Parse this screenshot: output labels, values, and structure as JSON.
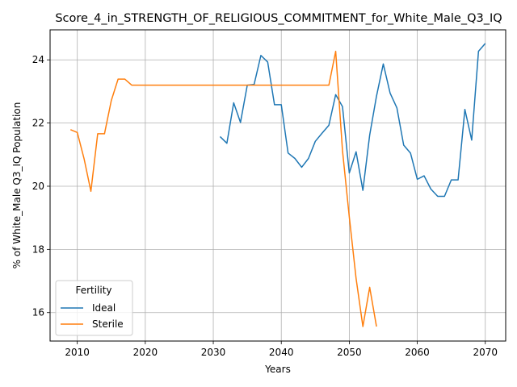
{
  "chart_data": {
    "type": "line",
    "title": "Score_4_in_STRENGTH_OF_RELIGIOUS_COMMITMENT_for_White_Male_Q3_IQ",
    "xlabel": "Years",
    "ylabel": "% of White_Male Q3_IQ Population",
    "xlim": [
      2006,
      2073
    ],
    "ylim": [
      15.1,
      24.95
    ],
    "x_ticks": [
      2010,
      2020,
      2030,
      2040,
      2050,
      2060,
      2070
    ],
    "y_ticks": [
      16,
      18,
      20,
      22,
      24
    ],
    "grid": true,
    "legend": {
      "title": "Fertility",
      "placement": "lower-left"
    },
    "series": [
      {
        "name": "Ideal",
        "color": "#1f77b4",
        "x": [
          2031,
          2032,
          2033,
          2034,
          2035,
          2036,
          2037,
          2038,
          2039,
          2040,
          2041,
          2042,
          2043,
          2044,
          2045,
          2046,
          2047,
          2048,
          2049,
          2050,
          2051,
          2052,
          2053,
          2054,
          2055,
          2056,
          2057,
          2058,
          2059,
          2060,
          2061,
          2062,
          2063,
          2064,
          2065,
          2066,
          2067,
          2068,
          2069,
          2070
        ],
        "y": [
          21.57,
          21.36,
          22.64,
          22.02,
          23.2,
          23.22,
          24.14,
          23.93,
          22.58,
          22.58,
          21.05,
          20.88,
          20.6,
          20.88,
          21.42,
          21.68,
          21.93,
          22.9,
          22.52,
          20.42,
          21.09,
          19.87,
          21.62,
          22.85,
          23.87,
          22.95,
          22.48,
          21.3,
          21.05,
          20.22,
          20.33,
          19.91,
          19.68,
          19.68,
          20.2,
          20.2,
          22.43,
          21.46,
          24.27,
          24.52
        ]
      },
      {
        "name": "Sterile",
        "color": "#ff7f0e",
        "x": [
          2009,
          2010,
          2011,
          2012,
          2013,
          2014,
          2015,
          2016,
          2017,
          2018,
          2019,
          2020,
          2021,
          2022,
          2023,
          2024,
          2025,
          2026,
          2027,
          2028,
          2029,
          2030,
          2031,
          2032,
          2033,
          2034,
          2035,
          2036,
          2037,
          2038,
          2039,
          2040,
          2041,
          2042,
          2043,
          2044,
          2045,
          2046,
          2047,
          2048,
          2049,
          2050,
          2051,
          2052,
          2053,
          2054
        ],
        "y": [
          21.79,
          21.7,
          20.87,
          19.84,
          21.66,
          21.66,
          22.71,
          23.39,
          23.39,
          23.2,
          23.2,
          23.2,
          23.2,
          23.2,
          23.2,
          23.2,
          23.2,
          23.2,
          23.2,
          23.2,
          23.2,
          23.2,
          23.2,
          23.2,
          23.2,
          23.2,
          23.2,
          23.2,
          23.2,
          23.2,
          23.2,
          23.2,
          23.2,
          23.2,
          23.2,
          23.2,
          23.2,
          23.2,
          23.2,
          24.27,
          21.13,
          19.03,
          17.08,
          15.56,
          16.8,
          15.56
        ]
      }
    ]
  }
}
